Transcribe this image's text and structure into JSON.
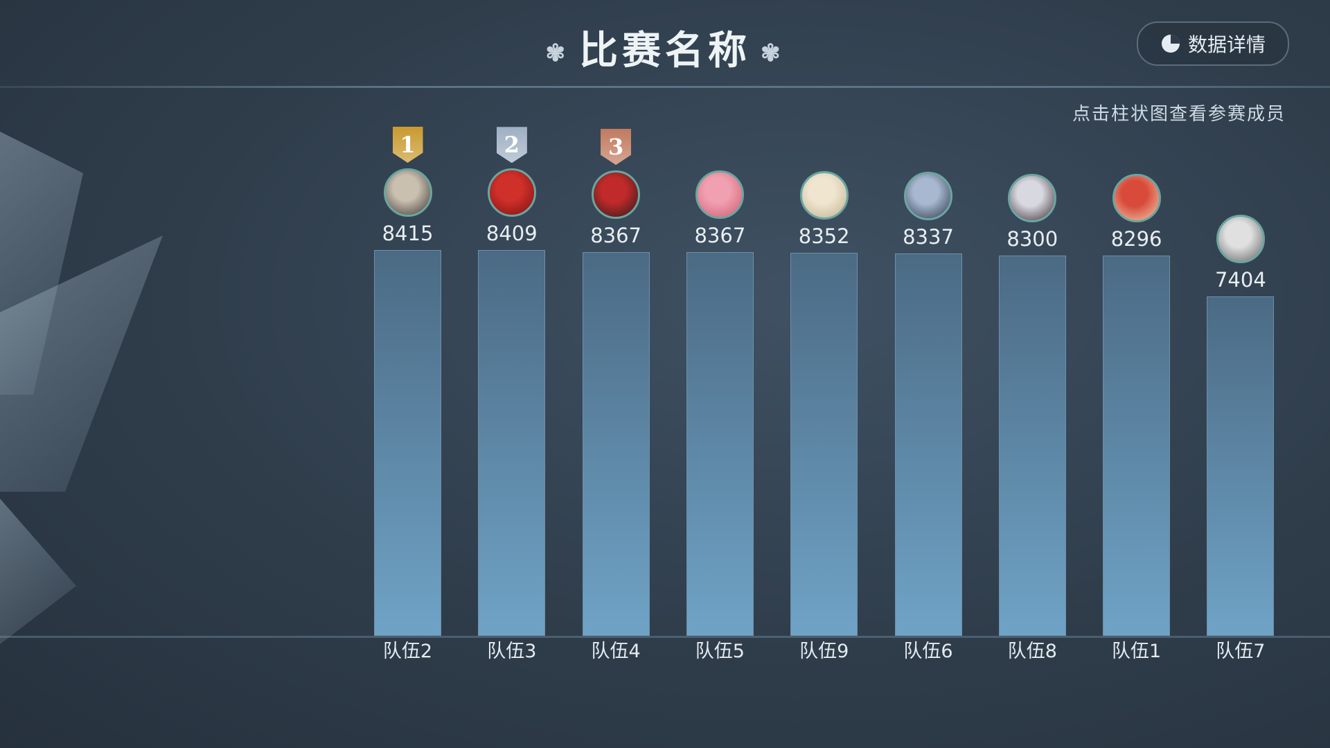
{
  "header": {
    "title": "比赛名称",
    "detail_button": "数据详情",
    "hint": "点击柱状图查看参赛成员"
  },
  "colors": {
    "bar_top": "#4b6a84",
    "bar_bottom": "#6fa3c6",
    "gold": "#c9992e",
    "silver": "#9fb0c4",
    "bronze": "#c07a5e"
  },
  "chart_data": {
    "type": "bar",
    "categories": [
      "队伍2",
      "队伍3",
      "队伍4",
      "队伍5",
      "队伍9",
      "队伍6",
      "队伍8",
      "队伍1",
      "队伍7"
    ],
    "values": [
      8415,
      8409,
      8367,
      8367,
      8352,
      8337,
      8300,
      8296,
      7404
    ],
    "ranks": [
      "1",
      "2",
      "3"
    ],
    "title": "",
    "xlabel": "",
    "ylabel": "",
    "grid": false
  }
}
